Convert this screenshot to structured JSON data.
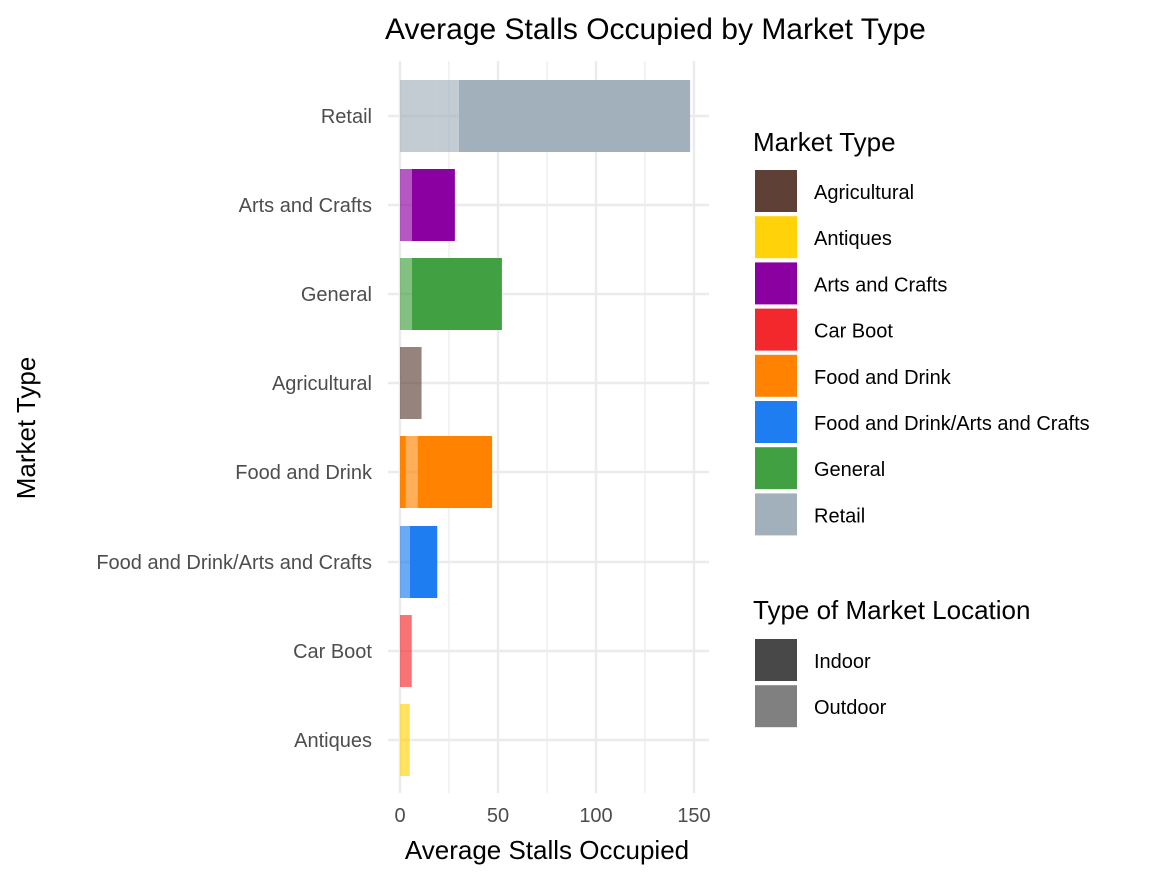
{
  "chart_data": {
    "type": "bar",
    "orientation": "horizontal",
    "stacked": true,
    "title": "Average Stalls Occupied by Market Type",
    "xlabel": "Average Stalls Occupied",
    "ylabel": "Market Type",
    "xlim": [
      0,
      155
    ],
    "xticks": [
      0,
      50,
      100,
      150
    ],
    "grid": true,
    "categories": [
      "Retail",
      "Arts and Crafts",
      "General",
      "Agricultural",
      "Food and Drink",
      "Food and Drink/Arts and Crafts",
      "Car Boot",
      "Antiques"
    ],
    "segments": {
      "Retail": [
        {
          "location": "Outdoor",
          "value": 18
        },
        {
          "location": "Outdoor",
          "value": 12
        },
        {
          "location": "Indoor",
          "value": 118
        }
      ],
      "Arts and Crafts": [
        {
          "location": "Outdoor",
          "value": 6
        },
        {
          "location": "Indoor",
          "value": 22
        }
      ],
      "General": [
        {
          "location": "Outdoor",
          "value": 6
        },
        {
          "location": "Indoor",
          "value": 46
        }
      ],
      "Agricultural": [
        {
          "location": "Outdoor",
          "value": 11
        }
      ],
      "Food and Drink": [
        {
          "location": "Indoor",
          "value": 3
        },
        {
          "location": "Outdoor",
          "value": 6
        },
        {
          "location": "Indoor",
          "value": 38
        }
      ],
      "Food and Drink/Arts and Crafts": [
        {
          "location": "Outdoor",
          "value": 5
        },
        {
          "location": "Indoor",
          "value": 14
        }
      ],
      "Car Boot": [
        {
          "location": "Outdoor",
          "value": 6
        }
      ],
      "Antiques": [
        {
          "location": "Outdoor",
          "value": 5
        }
      ]
    },
    "colors": {
      "Agricultural": "#5E4037",
      "Antiques": "#FFD20A",
      "Arts and Crafts": "#8B00A0",
      "Car Boot": "#F2282D",
      "Food and Drink": "#FF8200",
      "Food and Drink/Arts and Crafts": "#1E7DF0",
      "General": "#41A041",
      "Retail": "#A1B0BA"
    },
    "legend": {
      "placement": "right",
      "fill_title": "Market Type",
      "fill_items": [
        "Agricultural",
        "Antiques",
        "Arts and Crafts",
        "Car Boot",
        "Food and Drink",
        "Food and Drink/Arts and Crafts",
        "General",
        "Retail"
      ],
      "alpha_title": "Type of Market Location",
      "alpha_items": [
        {
          "label": "Indoor",
          "color": "#484848"
        },
        {
          "label": "Outdoor",
          "color": "#808080"
        }
      ]
    },
    "alpha": {
      "Indoor": 1.0,
      "Outdoor": 0.65
    }
  }
}
